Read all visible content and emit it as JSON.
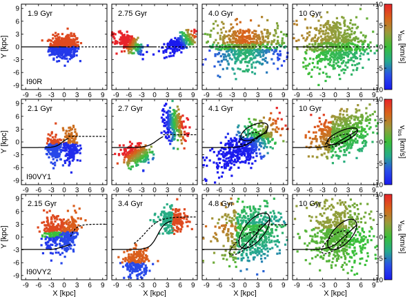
{
  "chart_data": {
    "type": "scatter",
    "grid_layout": "3 rows x 4 columns",
    "x_ticks": [
      "-9",
      "-6",
      "-3",
      "0",
      "3",
      "6",
      "9"
    ],
    "y_ticks": [
      "9",
      "6",
      "3",
      "0",
      "-3",
      "-6",
      "-9"
    ],
    "xlim": [
      -10,
      10
    ],
    "ylim": [
      -10,
      10
    ],
    "xlabel": "X [kpc]",
    "ylabel": "Y [kpc]",
    "colorbar": {
      "label_main": "v",
      "label_sub": "los",
      "label_unit": " [km/s]",
      "ticks": [
        "10",
        "5",
        "0",
        "-5",
        "-10"
      ],
      "range": [
        -10,
        10
      ],
      "colors": [
        "#e8242a",
        "#d8641a",
        "#9a9a3a",
        "#3abf3a",
        "#26aa8c",
        "#2a4ee8",
        "#1a1aee"
      ]
    },
    "rows": [
      {
        "run": "I90R",
        "panels": [
          {
            "time": "1.9 Gyr"
          },
          {
            "time": "2.75 Gyr"
          },
          {
            "time": "4.0 Gyr"
          },
          {
            "time": "10 Gyr"
          }
        ]
      },
      {
        "run": "I90VY1",
        "panels": [
          {
            "time": "2.1 Gyr"
          },
          {
            "time": "2.7 Gyr"
          },
          {
            "time": "4.1 Gyr"
          },
          {
            "time": "10 Gyr"
          }
        ]
      },
      {
        "run": "I90VY2",
        "panels": [
          {
            "time": "2.15 Gyr"
          },
          {
            "time": "3.4 Gyr"
          },
          {
            "time": "4.8 Gyr"
          },
          {
            "time": "10 Gyr"
          }
        ]
      }
    ]
  }
}
